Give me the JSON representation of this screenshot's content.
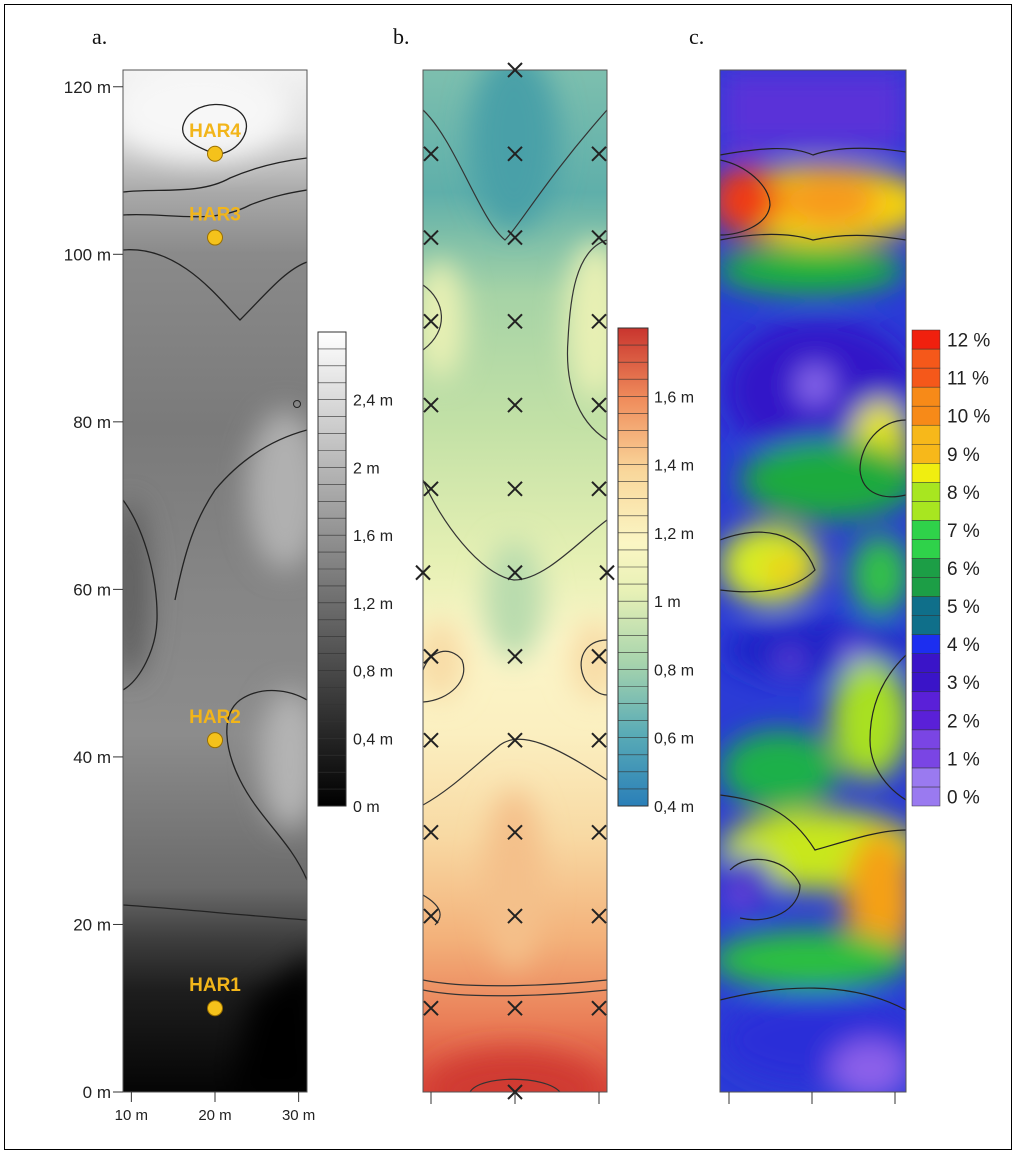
{
  "chart_data": [
    {
      "panel": "a.",
      "type": "heatmap",
      "x_ticks": [
        "10 m",
        "20 m",
        "30 m"
      ],
      "y_ticks": [
        "0 m",
        "20 m",
        "40 m",
        "60 m",
        "80 m",
        "100 m",
        "120 m"
      ],
      "ylim": [
        0,
        122
      ],
      "xlim": [
        9,
        31
      ],
      "colorscale": "grayscale",
      "legend_labels": [
        "0 m",
        "0,4 m",
        "0,8 m",
        "1,2 m",
        "1,6 m",
        "2 m",
        "2,4 m"
      ],
      "legend_range": [
        0,
        2.8
      ],
      "points": [
        {
          "label": "HAR4",
          "x": 20,
          "y": 112
        },
        {
          "label": "HAR3",
          "x": 20,
          "y": 102
        },
        {
          "label": "HAR2",
          "x": 20,
          "y": 42
        },
        {
          "label": "HAR1",
          "x": 20,
          "y": 10
        }
      ]
    },
    {
      "panel": "b.",
      "type": "heatmap",
      "colorscale": "blue-green-yellow-red",
      "legend_labels": [
        "0,4 m",
        "0,6 m",
        "0,8 m",
        "1 m",
        "1,2 m",
        "1,4 m",
        "1,6 m"
      ],
      "legend_range": [
        0.4,
        1.8
      ],
      "sample_points_y": [
        122,
        112,
        102,
        92,
        82,
        72,
        62,
        52,
        42,
        31,
        21,
        10,
        0
      ]
    },
    {
      "panel": "c.",
      "type": "heatmap",
      "colorscale": "purple-blue-green-yellow-red",
      "legend_labels": [
        "0 %",
        "1 %",
        "2 %",
        "3 %",
        "4 %",
        "5 %",
        "6 %",
        "7 %",
        "8 %",
        "9 %",
        "10 %",
        "11 %",
        "12 %"
      ],
      "legend_range": [
        0,
        12.5
      ]
    }
  ],
  "colors": {
    "marker": "#f5c21b",
    "har_label": "#f2b51a"
  }
}
